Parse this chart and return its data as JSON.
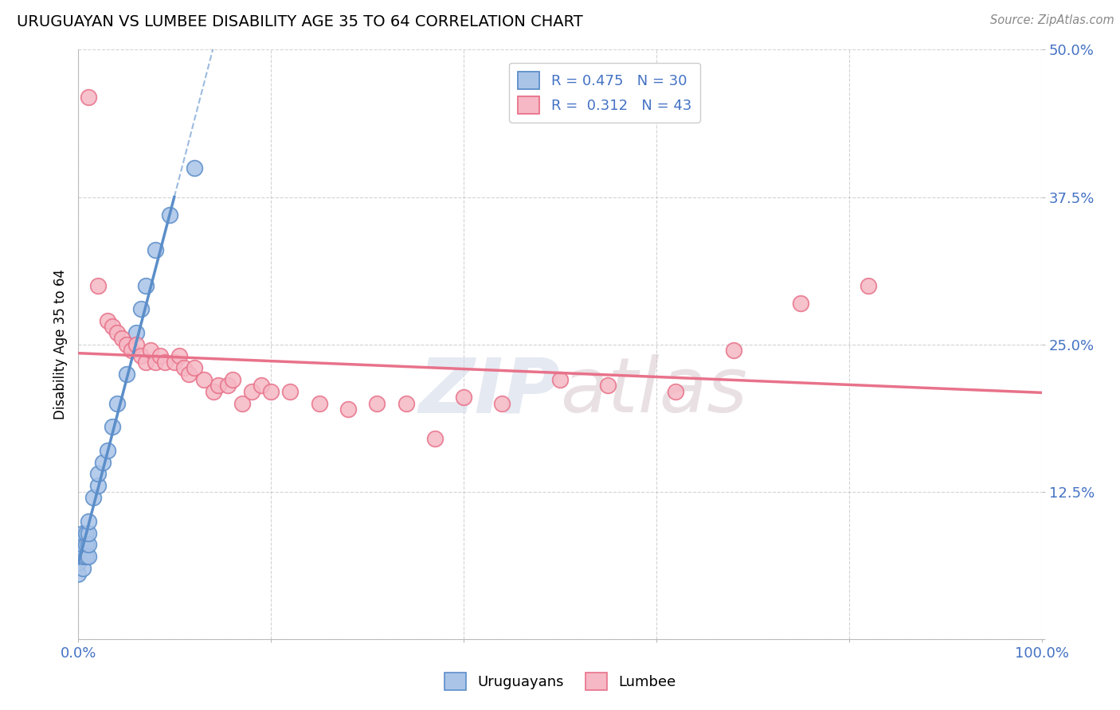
{
  "title": "URUGUAYAN VS LUMBEE DISABILITY AGE 35 TO 64 CORRELATION CHART",
  "source": "Source: ZipAtlas.com",
  "ylabel_label": "Disability Age 35 to 64",
  "x_min": 0.0,
  "x_max": 1.0,
  "y_min": 0.0,
  "y_max": 0.5,
  "uruguayan_R": 0.475,
  "uruguayan_N": 30,
  "lumbee_R": 0.312,
  "lumbee_N": 43,
  "uruguayan_color": "#5b8ec9",
  "uruguayan_fill": "#aac4e8",
  "lumbee_color": "#e8728a",
  "lumbee_fill": "#f5b8c4",
  "watermark": "ZIPAtlas",
  "background_color": "#ffffff",
  "grid_color": "#c8c8c8",
  "uruguayan_x": [
    0.0,
    0.0,
    0.0,
    0.0,
    0.005,
    0.005,
    0.005,
    0.005,
    0.005,
    0.008,
    0.008,
    0.008,
    0.01,
    0.01,
    0.01,
    0.01,
    0.015,
    0.02,
    0.02,
    0.025,
    0.03,
    0.035,
    0.04,
    0.05,
    0.06,
    0.065,
    0.07,
    0.08,
    0.095,
    0.12
  ],
  "uruguayan_y": [
    0.055,
    0.065,
    0.07,
    0.075,
    0.06,
    0.07,
    0.08,
    0.085,
    0.09,
    0.07,
    0.08,
    0.09,
    0.07,
    0.08,
    0.09,
    0.1,
    0.12,
    0.13,
    0.14,
    0.15,
    0.16,
    0.18,
    0.2,
    0.225,
    0.26,
    0.28,
    0.3,
    0.33,
    0.36,
    0.4
  ],
  "lumbee_x": [
    0.01,
    0.02,
    0.03,
    0.035,
    0.04,
    0.045,
    0.05,
    0.055,
    0.06,
    0.065,
    0.07,
    0.075,
    0.08,
    0.085,
    0.09,
    0.1,
    0.105,
    0.11,
    0.115,
    0.12,
    0.13,
    0.14,
    0.145,
    0.155,
    0.16,
    0.17,
    0.18,
    0.19,
    0.2,
    0.22,
    0.25,
    0.28,
    0.31,
    0.34,
    0.37,
    0.4,
    0.44,
    0.5,
    0.55,
    0.62,
    0.68,
    0.75,
    0.82
  ],
  "lumbee_y": [
    0.46,
    0.3,
    0.27,
    0.265,
    0.26,
    0.255,
    0.25,
    0.245,
    0.25,
    0.24,
    0.235,
    0.245,
    0.235,
    0.24,
    0.235,
    0.235,
    0.24,
    0.23,
    0.225,
    0.23,
    0.22,
    0.21,
    0.215,
    0.215,
    0.22,
    0.2,
    0.21,
    0.215,
    0.21,
    0.21,
    0.2,
    0.195,
    0.2,
    0.2,
    0.17,
    0.205,
    0.2,
    0.22,
    0.215,
    0.21,
    0.245,
    0.285,
    0.3
  ]
}
